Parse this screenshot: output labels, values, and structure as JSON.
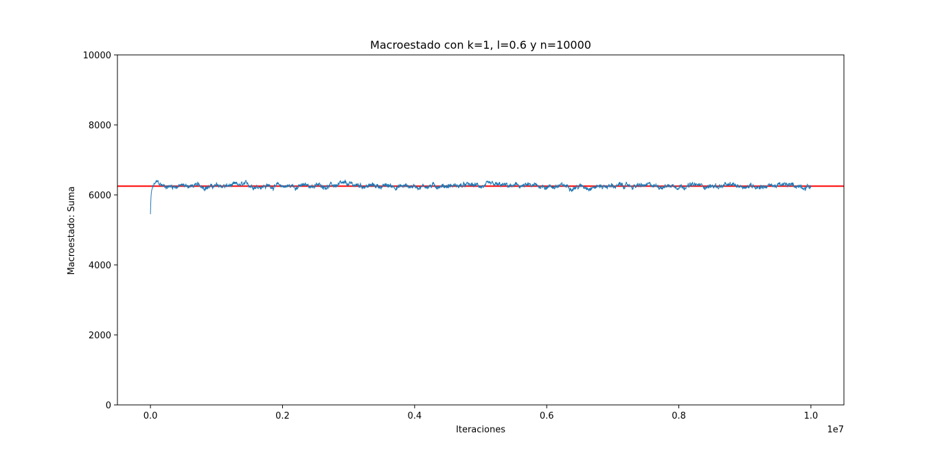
{
  "chart_data": {
    "type": "line",
    "title": "Macroestado con k=1, l=0.6 y n=10000",
    "xlabel": "Iteraciones",
    "ylabel": "Macroestado: Suma",
    "x_offset_label": "1e7",
    "xlim": [
      -0.05,
      1.05
    ],
    "ylim": [
      0,
      10000
    ],
    "x_ticks": [
      0.0,
      0.2,
      0.4,
      0.6,
      0.8,
      1.0
    ],
    "x_tick_labels": [
      "0.0",
      "0.2",
      "0.4",
      "0.6",
      "0.8",
      "1.0"
    ],
    "y_ticks": [
      0,
      2000,
      4000,
      6000,
      8000,
      10000
    ],
    "y_tick_labels": [
      "0",
      "2000",
      "4000",
      "6000",
      "8000",
      "10000"
    ],
    "grid": false,
    "legend": "none",
    "series": [
      {
        "color": "#1f77b4",
        "x": [
          0.0,
          0.0005,
          0.001,
          0.002,
          0.004,
          0.006,
          0.01,
          0.015,
          0.02,
          0.05,
          0.1,
          0.15,
          0.2,
          0.25,
          0.3,
          0.35,
          0.4,
          0.45,
          0.5,
          0.55,
          0.6,
          0.65,
          0.7,
          0.75,
          0.8,
          0.85,
          0.9,
          0.95,
          1.0
        ],
        "y": [
          5450,
          5800,
          6000,
          6150,
          6220,
          6300,
          6350,
          6280,
          6250,
          6260,
          6240,
          6270,
          6250,
          6260,
          6280,
          6250,
          6250,
          6270,
          6260,
          6250,
          6250,
          6240,
          6260,
          6250,
          6280,
          6250,
          6260,
          6270,
          6250
        ],
        "band": 90
      }
    ],
    "hline": {
      "y": 6250,
      "color": "#ff0000"
    }
  }
}
